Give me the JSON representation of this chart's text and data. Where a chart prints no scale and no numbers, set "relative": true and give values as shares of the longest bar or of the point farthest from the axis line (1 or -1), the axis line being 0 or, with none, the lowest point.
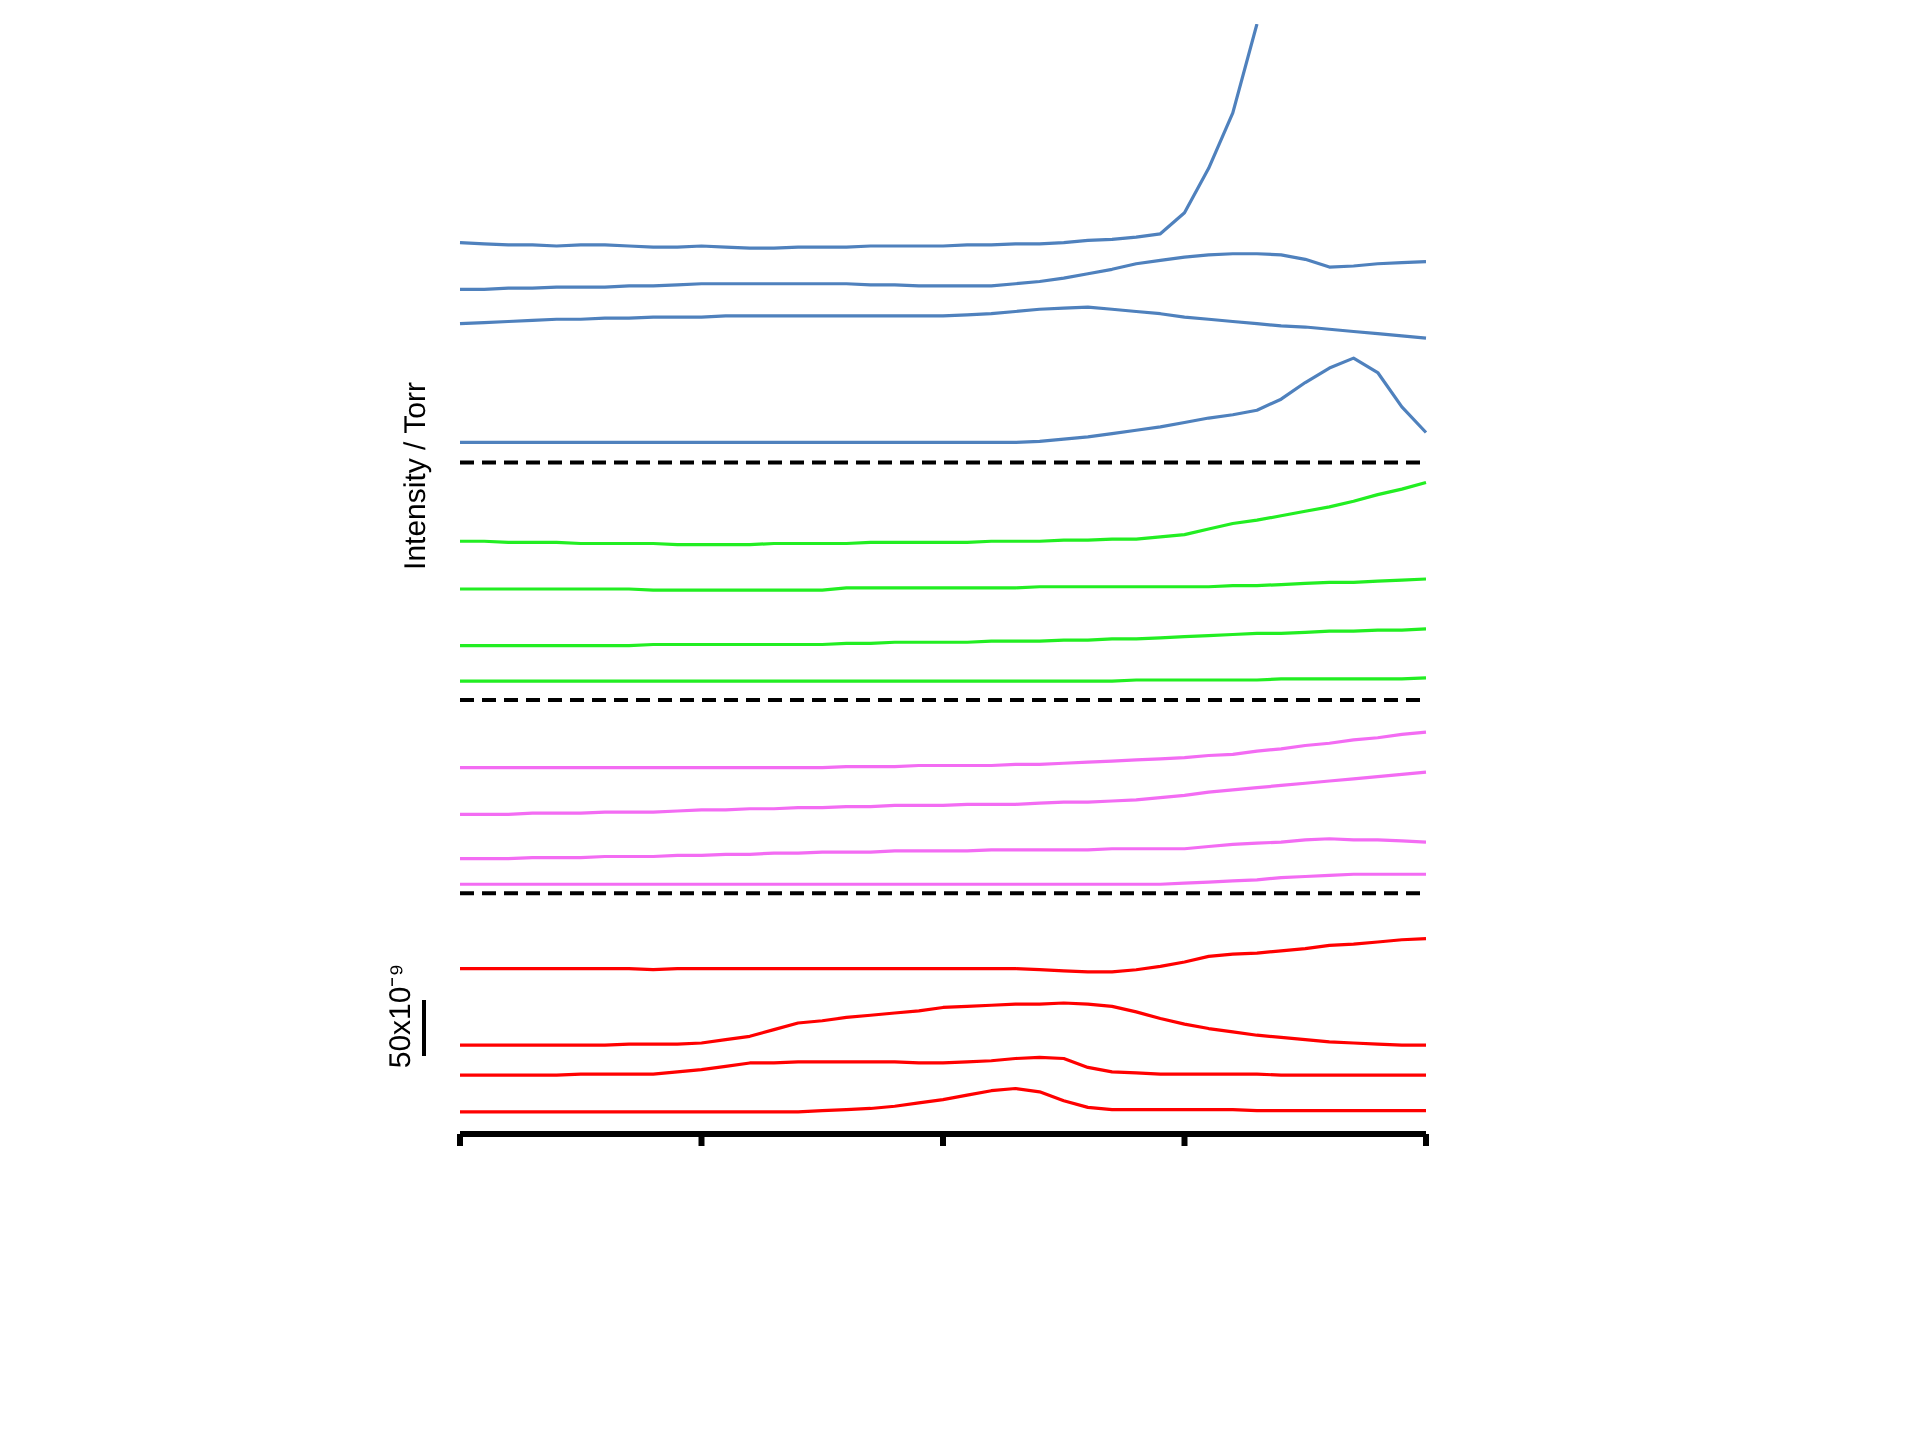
{
  "chart_data": {
    "type": "line",
    "relative": true,
    "ylabel": "Intensity / Torr",
    "annotations": [
      "50x10⁻⁹"
    ],
    "marker": "none",
    "categories": [
      null,
      null,
      null,
      null,
      null,
      null,
      null,
      null,
      null,
      null,
      null,
      null,
      null,
      null,
      null,
      null,
      null,
      null,
      null,
      null,
      null,
      null,
      null,
      null,
      null,
      null,
      null,
      null,
      null,
      null,
      null,
      null,
      null,
      null,
      null,
      null,
      null,
      null,
      null,
      null,
      null
    ],
    "ref_lines": [
      {
        "axis": "y",
        "value": 0.605,
        "color": "#000000",
        "line_style": "dashed"
      },
      {
        "axis": "y",
        "value": 0.391,
        "color": "#000000",
        "line_style": "dashed"
      },
      {
        "axis": "y",
        "value": 0.217,
        "color": "#000000",
        "line_style": "dashed"
      }
    ],
    "series": [
      {
        "color": "#4f81bd",
        "values": [
          0.803,
          0.802,
          0.801,
          0.801,
          0.8,
          0.801,
          0.801,
          0.8,
          0.799,
          0.799,
          0.8,
          0.799,
          0.798,
          0.798,
          0.799,
          0.799,
          0.799,
          0.8,
          0.8,
          0.8,
          0.8,
          0.801,
          0.801,
          0.802,
          0.802,
          0.803,
          0.805,
          0.806,
          0.808,
          0.811,
          0.83,
          0.87,
          0.92,
          1,
          null,
          null,
          null,
          null,
          null,
          null,
          null
        ]
      },
      {
        "color": "#4f81bd",
        "values": [
          0.761,
          0.761,
          0.762,
          0.762,
          0.763,
          0.763,
          0.763,
          0.764,
          0.764,
          0.765,
          0.766,
          0.766,
          0.766,
          0.766,
          0.766,
          0.766,
          0.766,
          0.765,
          0.765,
          0.764,
          0.764,
          0.764,
          0.764,
          0.766,
          0.768,
          0.771,
          0.775,
          0.779,
          0.784,
          0.787,
          0.79,
          0.792,
          0.793,
          0.793,
          0.792,
          0.788,
          0.781,
          0.782,
          0.784,
          0.785,
          0.786
        ]
      },
      {
        "color": "#4f81bd",
        "values": [
          0.73,
          0.731,
          0.732,
          0.733,
          0.734,
          0.734,
          0.735,
          0.735,
          0.736,
          0.736,
          0.736,
          0.737,
          0.737,
          0.737,
          0.737,
          0.737,
          0.737,
          0.737,
          0.737,
          0.737,
          0.737,
          0.738,
          0.739,
          0.741,
          0.743,
          0.744,
          0.745,
          0.743,
          0.741,
          0.739,
          0.736,
          0.734,
          0.732,
          0.73,
          0.728,
          0.727,
          0.725,
          0.723,
          0.721,
          0.719,
          0.717
        ]
      },
      {
        "color": "#4f81bd",
        "values": [
          0.623,
          0.623,
          0.623,
          0.623,
          0.623,
          0.623,
          0.623,
          0.623,
          0.623,
          0.623,
          0.623,
          0.623,
          0.623,
          0.623,
          0.623,
          0.623,
          0.623,
          0.623,
          0.623,
          0.623,
          0.623,
          0.623,
          0.623,
          0.623,
          0.624,
          0.626,
          0.628,
          0.631,
          0.634,
          0.637,
          0.641,
          0.645,
          0.648,
          0.652,
          0.662,
          0.677,
          0.69,
          0.699,
          0.686,
          0.655,
          0.632
        ]
      },
      {
        "color": "#22ee22",
        "values": [
          0.534,
          0.534,
          0.533,
          0.533,
          0.533,
          0.532,
          0.532,
          0.532,
          0.532,
          0.531,
          0.531,
          0.531,
          0.531,
          0.532,
          0.532,
          0.532,
          0.532,
          0.533,
          0.533,
          0.533,
          0.533,
          0.533,
          0.534,
          0.534,
          0.534,
          0.535,
          0.535,
          0.536,
          0.536,
          0.538,
          0.54,
          0.545,
          0.55,
          0.553,
          0.557,
          0.561,
          0.565,
          0.57,
          0.576,
          0.581,
          0.587
        ]
      },
      {
        "color": "#22ee22",
        "values": [
          0.491,
          0.491,
          0.491,
          0.491,
          0.491,
          0.491,
          0.491,
          0.491,
          0.49,
          0.49,
          0.49,
          0.49,
          0.49,
          0.49,
          0.49,
          0.49,
          0.492,
          0.492,
          0.492,
          0.492,
          0.492,
          0.492,
          0.492,
          0.492,
          0.493,
          0.493,
          0.493,
          0.493,
          0.493,
          0.493,
          0.493,
          0.493,
          0.494,
          0.494,
          0.495,
          0.496,
          0.497,
          0.497,
          0.498,
          0.499,
          0.5
        ]
      },
      {
        "color": "#22ee22",
        "values": [
          0.44,
          0.44,
          0.44,
          0.44,
          0.44,
          0.44,
          0.44,
          0.44,
          0.441,
          0.441,
          0.441,
          0.441,
          0.441,
          0.441,
          0.441,
          0.441,
          0.442,
          0.442,
          0.443,
          0.443,
          0.443,
          0.443,
          0.444,
          0.444,
          0.444,
          0.445,
          0.445,
          0.446,
          0.446,
          0.447,
          0.448,
          0.449,
          0.45,
          0.451,
          0.451,
          0.452,
          0.453,
          0.453,
          0.454,
          0.454,
          0.455
        ]
      },
      {
        "color": "#22ee22",
        "values": [
          0.408,
          0.408,
          0.408,
          0.408,
          0.408,
          0.408,
          0.408,
          0.408,
          0.408,
          0.408,
          0.408,
          0.408,
          0.408,
          0.408,
          0.408,
          0.408,
          0.408,
          0.408,
          0.408,
          0.408,
          0.408,
          0.408,
          0.408,
          0.408,
          0.408,
          0.408,
          0.408,
          0.408,
          0.409,
          0.409,
          0.409,
          0.409,
          0.409,
          0.409,
          0.41,
          0.41,
          0.41,
          0.41,
          0.41,
          0.41,
          0.411
        ]
      },
      {
        "color": "#f36cf3",
        "values": [
          0.33,
          0.33,
          0.33,
          0.33,
          0.33,
          0.33,
          0.33,
          0.33,
          0.33,
          0.33,
          0.33,
          0.33,
          0.33,
          0.33,
          0.33,
          0.33,
          0.331,
          0.331,
          0.331,
          0.332,
          0.332,
          0.332,
          0.332,
          0.333,
          0.333,
          0.334,
          0.335,
          0.336,
          0.337,
          0.338,
          0.339,
          0.341,
          0.342,
          0.345,
          0.347,
          0.35,
          0.352,
          0.355,
          0.357,
          0.36,
          0.362
        ]
      },
      {
        "color": "#f36cf3",
        "values": [
          0.288,
          0.288,
          0.288,
          0.289,
          0.289,
          0.289,
          0.29,
          0.29,
          0.29,
          0.291,
          0.292,
          0.292,
          0.293,
          0.293,
          0.294,
          0.294,
          0.295,
          0.295,
          0.296,
          0.296,
          0.296,
          0.297,
          0.297,
          0.297,
          0.298,
          0.299,
          0.299,
          0.3,
          0.301,
          0.303,
          0.305,
          0.308,
          0.31,
          0.312,
          0.314,
          0.316,
          0.318,
          0.32,
          0.322,
          0.324,
          0.326
        ]
      },
      {
        "color": "#f36cf3",
        "values": [
          0.248,
          0.248,
          0.248,
          0.249,
          0.249,
          0.249,
          0.25,
          0.25,
          0.25,
          0.251,
          0.251,
          0.252,
          0.252,
          0.253,
          0.253,
          0.254,
          0.254,
          0.254,
          0.255,
          0.255,
          0.255,
          0.255,
          0.256,
          0.256,
          0.256,
          0.256,
          0.256,
          0.257,
          0.257,
          0.257,
          0.257,
          0.259,
          0.261,
          0.262,
          0.263,
          0.265,
          0.266,
          0.265,
          0.265,
          0.264,
          0.263
        ]
      },
      {
        "color": "#f36cf3",
        "values": [
          0.225,
          0.225,
          0.225,
          0.225,
          0.225,
          0.225,
          0.225,
          0.225,
          0.225,
          0.225,
          0.225,
          0.225,
          0.225,
          0.225,
          0.225,
          0.225,
          0.225,
          0.225,
          0.225,
          0.225,
          0.225,
          0.225,
          0.225,
          0.225,
          0.225,
          0.225,
          0.225,
          0.225,
          0.225,
          0.225,
          0.226,
          0.227,
          0.228,
          0.229,
          0.231,
          0.232,
          0.233,
          0.234,
          0.234,
          0.234,
          0.234
        ]
      },
      {
        "color": "#ff0000",
        "values": [
          0.149,
          0.149,
          0.149,
          0.149,
          0.149,
          0.149,
          0.149,
          0.149,
          0.148,
          0.149,
          0.149,
          0.149,
          0.149,
          0.149,
          0.149,
          0.149,
          0.149,
          0.149,
          0.149,
          0.149,
          0.149,
          0.149,
          0.149,
          0.149,
          0.148,
          0.147,
          0.146,
          0.146,
          0.148,
          0.151,
          0.155,
          0.16,
          0.162,
          0.163,
          0.165,
          0.167,
          0.17,
          0.171,
          0.173,
          0.175,
          0.176
        ]
      },
      {
        "color": "#ff0000",
        "values": [
          0.08,
          0.08,
          0.08,
          0.08,
          0.08,
          0.08,
          0.08,
          0.081,
          0.081,
          0.081,
          0.082,
          0.085,
          0.088,
          0.094,
          0.1,
          0.102,
          0.105,
          0.107,
          0.109,
          0.111,
          0.114,
          0.115,
          0.116,
          0.117,
          0.117,
          0.118,
          0.117,
          0.115,
          0.11,
          0.104,
          0.099,
          0.095,
          0.092,
          0.089,
          0.087,
          0.085,
          0.083,
          0.082,
          0.081,
          0.08,
          0.08
        ]
      },
      {
        "color": "#ff0000",
        "values": [
          0.053,
          0.053,
          0.053,
          0.053,
          0.053,
          0.054,
          0.054,
          0.054,
          0.054,
          0.056,
          0.058,
          0.061,
          0.064,
          0.064,
          0.065,
          0.065,
          0.065,
          0.065,
          0.065,
          0.064,
          0.064,
          0.065,
          0.066,
          0.068,
          0.069,
          0.068,
          0.06,
          0.056,
          0.055,
          0.054,
          0.054,
          0.054,
          0.054,
          0.054,
          0.053,
          0.053,
          0.053,
          0.053,
          0.053,
          0.053,
          0.053
        ]
      },
      {
        "color": "#ff0000",
        "values": [
          0.02,
          0.02,
          0.02,
          0.02,
          0.02,
          0.02,
          0.02,
          0.02,
          0.02,
          0.02,
          0.02,
          0.02,
          0.02,
          0.02,
          0.02,
          0.021,
          0.022,
          0.023,
          0.025,
          0.028,
          0.031,
          0.035,
          0.039,
          0.041,
          0.038,
          0.03,
          0.024,
          0.022,
          0.022,
          0.022,
          0.022,
          0.022,
          0.022,
          0.021,
          0.021,
          0.021,
          0.021,
          0.021,
          0.021,
          0.021,
          0.021
        ]
      }
    ]
  }
}
